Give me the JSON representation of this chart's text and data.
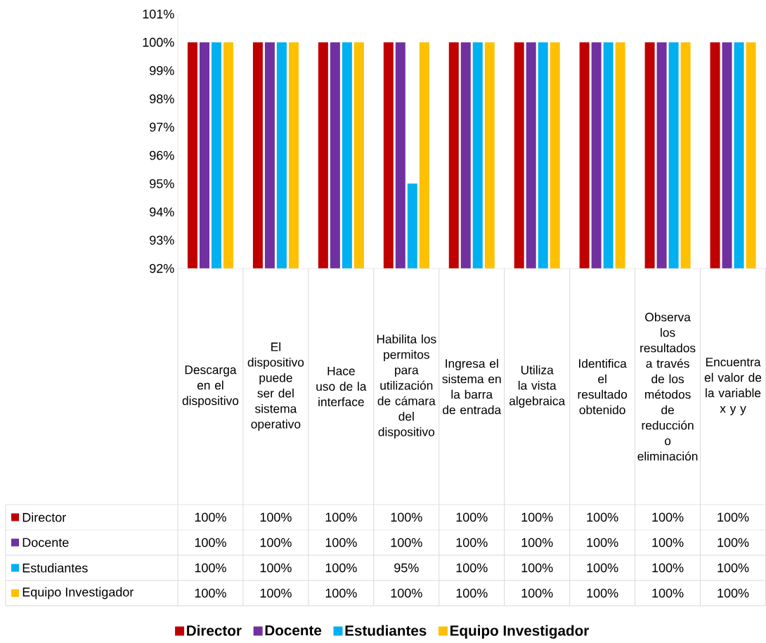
{
  "chart_data": {
    "type": "bar",
    "categories": [
      "Descarga en el dispositivo",
      "El dispositivo puede ser del sistema operativo",
      "Hace uso de la interface",
      "Habilita los permitos para utilización de cámara del dispositivo",
      "Ingresa el sistema en la barra de entrada",
      "Utiliza la vista algebraica",
      "Identifica el resultado obtenido",
      "Observa los resultados a través de los métodos de reducción o eliminación",
      "Encuentra el valor de la variable x y y"
    ],
    "series": [
      {
        "name": "Director",
        "color": "#c00000",
        "values": [
          100,
          100,
          100,
          100,
          100,
          100,
          100,
          100,
          100
        ],
        "value_labels": [
          "100%",
          "100%",
          "100%",
          "100%",
          "100%",
          "100%",
          "100%",
          "100%",
          "100%"
        ]
      },
      {
        "name": "Docente",
        "color": "#7030a0",
        "values": [
          100,
          100,
          100,
          100,
          100,
          100,
          100,
          100,
          100
        ],
        "value_labels": [
          "100%",
          "100%",
          "100%",
          "100%",
          "100%",
          "100%",
          "100%",
          "100%",
          "100%"
        ]
      },
      {
        "name": "Estudiantes",
        "color": "#00b0f0",
        "values": [
          100,
          100,
          100,
          95,
          100,
          100,
          100,
          100,
          100
        ],
        "value_labels": [
          "100%",
          "100%",
          "100%",
          "95%",
          "100%",
          "100%",
          "100%",
          "100%",
          "100%"
        ]
      },
      {
        "name": "Equipo Investigador",
        "color": "#ffc000",
        "values": [
          100,
          100,
          100,
          100,
          100,
          100,
          100,
          100,
          100
        ],
        "value_labels": [
          "100%",
          "100%",
          "100%",
          "100%",
          "100%",
          "100%",
          "100%",
          "100%",
          "100%"
        ]
      }
    ],
    "ylim": [
      92,
      101
    ],
    "yticks": [
      {
        "value": 92,
        "label": "92%"
      },
      {
        "value": 93,
        "label": "93%"
      },
      {
        "value": 94,
        "label": "94%"
      },
      {
        "value": 95,
        "label": "95%"
      },
      {
        "value": 96,
        "label": "96%"
      },
      {
        "value": 97,
        "label": "97%"
      },
      {
        "value": 98,
        "label": "98%"
      },
      {
        "value": 99,
        "label": "99%"
      },
      {
        "value": 100,
        "label": "100%"
      },
      {
        "value": 101,
        "label": "101%"
      }
    ],
    "legend": "bottom"
  }
}
